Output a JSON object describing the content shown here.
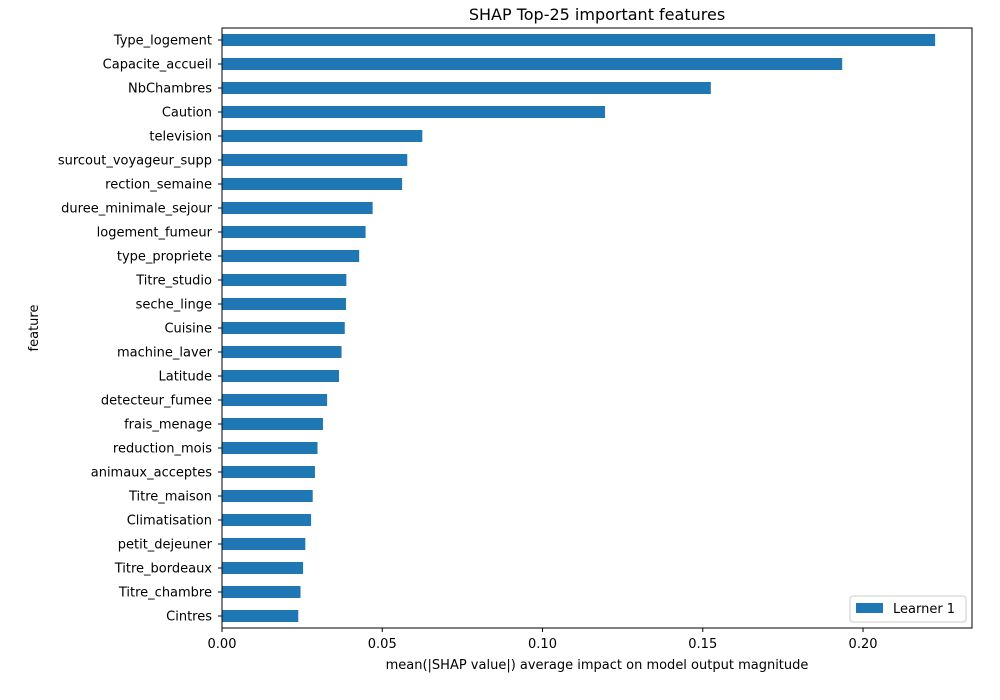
{
  "chart_data": {
    "type": "bar",
    "orientation": "horizontal",
    "title": "SHAP Top-25 important features",
    "xlabel": "mean(|SHAP value|) average impact on model output magnitude",
    "ylabel": "feature",
    "xlim": [
      0,
      0.234
    ],
    "xticks": [
      0.0,
      0.05,
      0.1,
      0.15,
      0.2
    ],
    "xtick_labels": [
      "0.00",
      "0.05",
      "0.10",
      "0.15",
      "0.20"
    ],
    "grid": false,
    "legend_position": "bottom-right",
    "bar_color": "#1f77b4",
    "categories": [
      "Type_logement",
      "Capacite_accueil",
      "NbChambres",
      "Caution",
      "television",
      "surcout_voyageur_supp",
      "rection_semaine",
      "duree_minimale_sejour",
      "logement_fumeur",
      "type_propriete",
      "Titre_studio",
      "seche_linge",
      "Cuisine",
      "machine_laver",
      "Latitude",
      "detecteur_fumee",
      "frais_menage",
      "reduction_mois",
      "animaux_acceptes",
      "Titre_maison",
      "Climatisation",
      "petit_dejeuner",
      "Titre_bordeaux",
      "Titre_chambre",
      "Cintres"
    ],
    "series": [
      {
        "name": "Learner 1",
        "values": [
          0.2225,
          0.1935,
          0.1525,
          0.1195,
          0.0625,
          0.0578,
          0.0562,
          0.047,
          0.0448,
          0.0428,
          0.0388,
          0.0387,
          0.0383,
          0.0373,
          0.0365,
          0.0328,
          0.0315,
          0.0298,
          0.029,
          0.0283,
          0.0278,
          0.026,
          0.0253,
          0.0245,
          0.0238
        ]
      }
    ]
  }
}
